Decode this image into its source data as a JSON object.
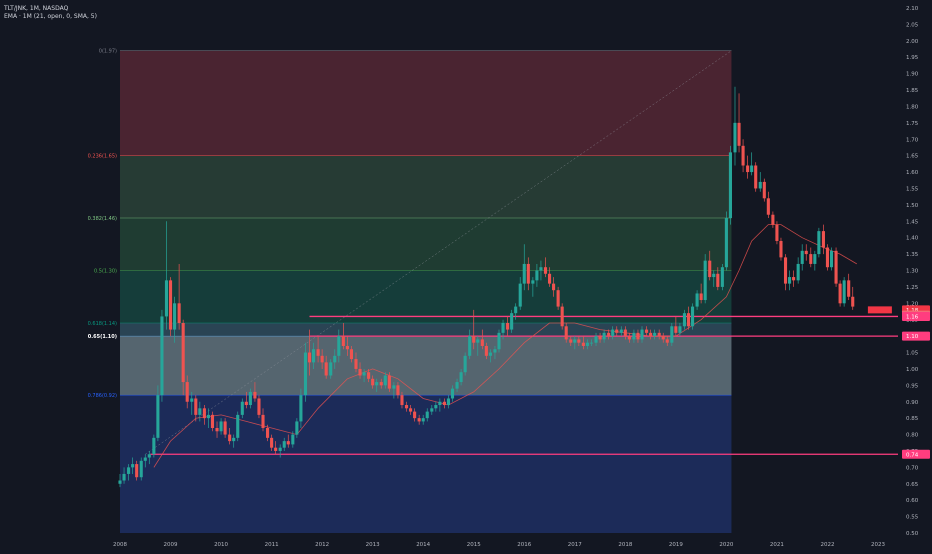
{
  "header": {
    "symbol_line": "TLT/JNK, 1M, NASDAQ",
    "indicator_line": "EMA · 1M (21, open, 0, SMA, 5)"
  },
  "colors": {
    "background": "#131722",
    "up": "#26a69a",
    "down": "#ef5350",
    "ema": "#ef5350",
    "hline": "#ff3d7f",
    "zone_0_0236": "#4a2431",
    "zone_0236_0382": "#263b34",
    "zone_0382_05": "#1f3c32",
    "zone_05_0618": "#153d3a",
    "zone_0618_065": "#2a4454",
    "zone_065_0786": "#55656f",
    "zone_0786_1": "#1c2b59"
  },
  "chart_data": {
    "type": "candlestick",
    "title": "TLT/JNK, 1M, NASDAQ",
    "ylim": [
      0.5,
      2.1
    ],
    "xlim": [
      2008.0,
      2023.6
    ],
    "y_ticks": [
      "2.10",
      "2.05",
      "2.00",
      "1.95",
      "1.90",
      "1.85",
      "1.80",
      "1.75",
      "1.70",
      "1.65",
      "1.60",
      "1.55",
      "1.50",
      "1.45",
      "1.40",
      "1.35",
      "1.30",
      "1.25",
      "1.20",
      "1.15",
      "1.10",
      "1.05",
      "1.00",
      "0.95",
      "0.90",
      "0.85",
      "0.80",
      "0.75",
      "0.70",
      "0.65",
      "0.60",
      "0.55",
      "0.50"
    ],
    "x_ticks": [
      "2008",
      "2009",
      "2010",
      "2011",
      "2012",
      "2013",
      "2014",
      "2015",
      "2016",
      "2017",
      "2018",
      "2019",
      "2020",
      "2021",
      "2022",
      "2023"
    ],
    "fib_levels": [
      {
        "label": "0(1.97)",
        "value": 1.97
      },
      {
        "label": "0.236(1.65)",
        "value": 1.65
      },
      {
        "label": "0.382(1.46)",
        "value": 1.46
      },
      {
        "label": "0.5(1.30)",
        "value": 1.3
      },
      {
        "label": "0.618(1.14)",
        "value": 1.14
      },
      {
        "label": "0.65(1.10)",
        "value": 1.1
      },
      {
        "label": "0.786(0.92)",
        "value": 0.92
      }
    ],
    "fib_bottom": 0.5,
    "fib_x_range": [
      2008.0,
      2020.1
    ],
    "horizontal_lines": [
      {
        "label": "1.16",
        "value": 1.16
      },
      {
        "label": "1.10",
        "value": 1.1
      },
      {
        "label": "0.74",
        "value": 0.74
      }
    ],
    "price_labels": [
      {
        "label": "1.18",
        "value": 1.18
      },
      {
        "label": "1.17",
        "value": 1.17
      }
    ],
    "candles": [
      [
        2008.0,
        0.65,
        0.68,
        0.64,
        0.66
      ],
      [
        2008.08,
        0.66,
        0.7,
        0.65,
        0.68
      ],
      [
        2008.17,
        0.68,
        0.71,
        0.66,
        0.7
      ],
      [
        2008.25,
        0.7,
        0.73,
        0.68,
        0.71
      ],
      [
        2008.33,
        0.71,
        0.72,
        0.66,
        0.67
      ],
      [
        2008.42,
        0.67,
        0.73,
        0.66,
        0.72
      ],
      [
        2008.5,
        0.72,
        0.74,
        0.7,
        0.73
      ],
      [
        2008.58,
        0.73,
        0.75,
        0.71,
        0.74
      ],
      [
        2008.67,
        0.74,
        0.8,
        0.73,
        0.79
      ],
      [
        2008.75,
        0.79,
        0.95,
        0.78,
        0.92
      ],
      [
        2008.83,
        0.92,
        1.18,
        0.9,
        1.16
      ],
      [
        2008.92,
        1.16,
        1.45,
        1.12,
        1.27
      ],
      [
        2009.0,
        1.27,
        1.28,
        1.1,
        1.12
      ],
      [
        2009.08,
        1.12,
        1.22,
        1.08,
        1.2
      ],
      [
        2009.17,
        1.2,
        1.32,
        1.12,
        1.14
      ],
      [
        2009.25,
        1.14,
        1.15,
        0.92,
        0.96
      ],
      [
        2009.33,
        0.96,
        0.98,
        0.88,
        0.9
      ],
      [
        2009.42,
        0.9,
        0.93,
        0.86,
        0.91
      ],
      [
        2009.5,
        0.91,
        0.92,
        0.84,
        0.86
      ],
      [
        2009.58,
        0.86,
        0.9,
        0.84,
        0.88
      ],
      [
        2009.67,
        0.88,
        0.89,
        0.83,
        0.85
      ],
      [
        2009.75,
        0.85,
        0.88,
        0.82,
        0.86
      ],
      [
        2009.83,
        0.86,
        0.87,
        0.81,
        0.82
      ],
      [
        2009.92,
        0.82,
        0.84,
        0.79,
        0.81
      ],
      [
        2010.0,
        0.81,
        0.85,
        0.8,
        0.84
      ],
      [
        2010.08,
        0.84,
        0.85,
        0.79,
        0.8
      ],
      [
        2010.17,
        0.8,
        0.82,
        0.77,
        0.78
      ],
      [
        2010.25,
        0.78,
        0.8,
        0.76,
        0.79
      ],
      [
        2010.33,
        0.79,
        0.87,
        0.78,
        0.86
      ],
      [
        2010.42,
        0.86,
        0.91,
        0.85,
        0.9
      ],
      [
        2010.5,
        0.9,
        0.93,
        0.88,
        0.89
      ],
      [
        2010.58,
        0.89,
        0.94,
        0.88,
        0.93
      ],
      [
        2010.67,
        0.93,
        0.96,
        0.9,
        0.91
      ],
      [
        2010.75,
        0.91,
        0.92,
        0.85,
        0.86
      ],
      [
        2010.83,
        0.86,
        0.88,
        0.81,
        0.82
      ],
      [
        2010.92,
        0.82,
        0.83,
        0.78,
        0.79
      ],
      [
        2011.0,
        0.79,
        0.8,
        0.75,
        0.76
      ],
      [
        2011.08,
        0.76,
        0.78,
        0.74,
        0.75
      ],
      [
        2011.17,
        0.75,
        0.77,
        0.73,
        0.76
      ],
      [
        2011.25,
        0.76,
        0.79,
        0.75,
        0.78
      ],
      [
        2011.33,
        0.78,
        0.8,
        0.76,
        0.77
      ],
      [
        2011.42,
        0.77,
        0.81,
        0.76,
        0.8
      ],
      [
        2011.5,
        0.8,
        0.85,
        0.79,
        0.84
      ],
      [
        2011.58,
        0.84,
        0.94,
        0.82,
        0.92
      ],
      [
        2011.67,
        0.92,
        1.08,
        0.9,
        1.05
      ],
      [
        2011.75,
        1.05,
        1.12,
        0.98,
        1.02
      ],
      [
        2011.83,
        1.02,
        1.08,
        1.0,
        1.06
      ],
      [
        2011.92,
        1.06,
        1.1,
        1.02,
        1.04
      ],
      [
        2012.0,
        1.04,
        1.06,
        1.0,
        1.02
      ],
      [
        2012.08,
        1.02,
        1.04,
        0.97,
        0.98
      ],
      [
        2012.17,
        0.98,
        1.03,
        0.97,
        1.02
      ],
      [
        2012.25,
        1.02,
        1.06,
        1.0,
        1.04
      ],
      [
        2012.33,
        1.04,
        1.12,
        1.02,
        1.1
      ],
      [
        2012.42,
        1.1,
        1.14,
        1.06,
        1.07
      ],
      [
        2012.5,
        1.07,
        1.1,
        1.04,
        1.06
      ],
      [
        2012.58,
        1.06,
        1.07,
        1.02,
        1.03
      ],
      [
        2012.67,
        1.03,
        1.05,
        0.99,
        1.0
      ],
      [
        2012.75,
        1.0,
        1.02,
        0.97,
        0.98
      ],
      [
        2012.83,
        0.98,
        1.0,
        0.96,
        0.99
      ],
      [
        2012.92,
        0.99,
        1.0,
        0.96,
        0.97
      ],
      [
        2013.0,
        0.97,
        0.98,
        0.94,
        0.95
      ],
      [
        2013.08,
        0.95,
        0.97,
        0.93,
        0.96
      ],
      [
        2013.17,
        0.96,
        0.97,
        0.94,
        0.95
      ],
      [
        2013.25,
        0.95,
        0.99,
        0.94,
        0.98
      ],
      [
        2013.33,
        0.98,
        0.99,
        0.93,
        0.94
      ],
      [
        2013.42,
        0.94,
        0.96,
        0.91,
        0.95
      ],
      [
        2013.5,
        0.95,
        0.96,
        0.91,
        0.92
      ],
      [
        2013.58,
        0.92,
        0.93,
        0.88,
        0.89
      ],
      [
        2013.67,
        0.89,
        0.9,
        0.87,
        0.88
      ],
      [
        2013.75,
        0.88,
        0.89,
        0.86,
        0.87
      ],
      [
        2013.83,
        0.87,
        0.88,
        0.84,
        0.85
      ],
      [
        2013.92,
        0.85,
        0.86,
        0.83,
        0.84
      ],
      [
        2014.0,
        0.84,
        0.86,
        0.83,
        0.85
      ],
      [
        2014.08,
        0.85,
        0.88,
        0.84,
        0.87
      ],
      [
        2014.17,
        0.87,
        0.89,
        0.86,
        0.88
      ],
      [
        2014.25,
        0.88,
        0.9,
        0.87,
        0.89
      ],
      [
        2014.33,
        0.89,
        0.91,
        0.87,
        0.9
      ],
      [
        2014.42,
        0.9,
        0.91,
        0.88,
        0.89
      ],
      [
        2014.5,
        0.89,
        0.92,
        0.88,
        0.91
      ],
      [
        2014.58,
        0.91,
        0.95,
        0.9,
        0.94
      ],
      [
        2014.67,
        0.94,
        0.97,
        0.93,
        0.96
      ],
      [
        2014.75,
        0.96,
        1.0,
        0.95,
        0.99
      ],
      [
        2014.83,
        0.99,
        1.05,
        0.98,
        1.04
      ],
      [
        2014.92,
        1.04,
        1.12,
        1.03,
        1.1
      ],
      [
        2015.0,
        1.1,
        1.18,
        1.06,
        1.08
      ],
      [
        2015.08,
        1.08,
        1.1,
        1.04,
        1.09
      ],
      [
        2015.17,
        1.09,
        1.12,
        1.06,
        1.07
      ],
      [
        2015.25,
        1.07,
        1.08,
        1.03,
        1.04
      ],
      [
        2015.33,
        1.04,
        1.06,
        1.02,
        1.05
      ],
      [
        2015.42,
        1.05,
        1.07,
        1.03,
        1.06
      ],
      [
        2015.5,
        1.06,
        1.12,
        1.05,
        1.11
      ],
      [
        2015.58,
        1.11,
        1.15,
        1.09,
        1.14
      ],
      [
        2015.67,
        1.14,
        1.16,
        1.1,
        1.12
      ],
      [
        2015.75,
        1.12,
        1.18,
        1.11,
        1.17
      ],
      [
        2015.83,
        1.17,
        1.2,
        1.15,
        1.19
      ],
      [
        2015.92,
        1.19,
        1.28,
        1.18,
        1.26
      ],
      [
        2016.0,
        1.26,
        1.38,
        1.24,
        1.32
      ],
      [
        2016.08,
        1.32,
        1.34,
        1.24,
        1.26
      ],
      [
        2016.17,
        1.26,
        1.28,
        1.22,
        1.27
      ],
      [
        2016.25,
        1.27,
        1.32,
        1.25,
        1.3
      ],
      [
        2016.33,
        1.3,
        1.33,
        1.27,
        1.31
      ],
      [
        2016.42,
        1.31,
        1.34,
        1.28,
        1.29
      ],
      [
        2016.5,
        1.29,
        1.31,
        1.25,
        1.26
      ],
      [
        2016.58,
        1.26,
        1.28,
        1.22,
        1.24
      ],
      [
        2016.67,
        1.24,
        1.25,
        1.18,
        1.19
      ],
      [
        2016.75,
        1.19,
        1.2,
        1.12,
        1.13
      ],
      [
        2016.83,
        1.13,
        1.14,
        1.08,
        1.09
      ],
      [
        2016.92,
        1.09,
        1.1,
        1.07,
        1.08
      ],
      [
        2017.0,
        1.08,
        1.1,
        1.06,
        1.09
      ],
      [
        2017.08,
        1.09,
        1.1,
        1.07,
        1.08
      ],
      [
        2017.17,
        1.08,
        1.1,
        1.06,
        1.07
      ],
      [
        2017.25,
        1.07,
        1.09,
        1.06,
        1.08
      ],
      [
        2017.33,
        1.08,
        1.09,
        1.07,
        1.08
      ],
      [
        2017.42,
        1.08,
        1.11,
        1.07,
        1.1
      ],
      [
        2017.5,
        1.1,
        1.11,
        1.08,
        1.09
      ],
      [
        2017.58,
        1.09,
        1.12,
        1.08,
        1.11
      ],
      [
        2017.67,
        1.11,
        1.12,
        1.09,
        1.1
      ],
      [
        2017.75,
        1.1,
        1.13,
        1.09,
        1.12
      ],
      [
        2017.83,
        1.12,
        1.13,
        1.1,
        1.11
      ],
      [
        2017.92,
        1.11,
        1.13,
        1.1,
        1.12
      ],
      [
        2018.0,
        1.12,
        1.13,
        1.09,
        1.1
      ],
      [
        2018.08,
        1.1,
        1.11,
        1.08,
        1.09
      ],
      [
        2018.17,
        1.09,
        1.12,
        1.08,
        1.11
      ],
      [
        2018.25,
        1.11,
        1.12,
        1.08,
        1.09
      ],
      [
        2018.33,
        1.09,
        1.13,
        1.08,
        1.12
      ],
      [
        2018.42,
        1.12,
        1.13,
        1.1,
        1.11
      ],
      [
        2018.5,
        1.11,
        1.12,
        1.09,
        1.1
      ],
      [
        2018.58,
        1.1,
        1.12,
        1.09,
        1.11
      ],
      [
        2018.67,
        1.11,
        1.12,
        1.09,
        1.1
      ],
      [
        2018.75,
        1.1,
        1.11,
        1.08,
        1.09
      ],
      [
        2018.83,
        1.09,
        1.1,
        1.07,
        1.08
      ],
      [
        2018.92,
        1.08,
        1.14,
        1.07,
        1.13
      ],
      [
        2019.0,
        1.13,
        1.16,
        1.1,
        1.11
      ],
      [
        2019.08,
        1.11,
        1.14,
        1.1,
        1.13
      ],
      [
        2019.17,
        1.13,
        1.18,
        1.12,
        1.17
      ],
      [
        2019.25,
        1.17,
        1.19,
        1.12,
        1.13
      ],
      [
        2019.33,
        1.13,
        1.2,
        1.12,
        1.19
      ],
      [
        2019.42,
        1.19,
        1.24,
        1.18,
        1.23
      ],
      [
        2019.5,
        1.23,
        1.26,
        1.2,
        1.21
      ],
      [
        2019.58,
        1.21,
        1.35,
        1.2,
        1.33
      ],
      [
        2019.67,
        1.33,
        1.36,
        1.27,
        1.28
      ],
      [
        2019.75,
        1.28,
        1.3,
        1.25,
        1.29
      ],
      [
        2019.83,
        1.29,
        1.31,
        1.24,
        1.25
      ],
      [
        2019.92,
        1.25,
        1.32,
        1.24,
        1.31
      ],
      [
        2020.0,
        1.31,
        1.48,
        1.3,
        1.46
      ],
      [
        2020.08,
        1.46,
        1.68,
        1.44,
        1.66
      ],
      [
        2020.17,
        1.66,
        1.86,
        1.62,
        1.75
      ],
      [
        2020.25,
        1.75,
        1.84,
        1.66,
        1.68
      ],
      [
        2020.33,
        1.68,
        1.7,
        1.6,
        1.62
      ],
      [
        2020.42,
        1.62,
        1.65,
        1.58,
        1.6
      ],
      [
        2020.5,
        1.6,
        1.66,
        1.59,
        1.62
      ],
      [
        2020.58,
        1.62,
        1.63,
        1.54,
        1.55
      ],
      [
        2020.67,
        1.55,
        1.6,
        1.54,
        1.57
      ],
      [
        2020.75,
        1.57,
        1.58,
        1.51,
        1.52
      ],
      [
        2020.83,
        1.52,
        1.54,
        1.46,
        1.47
      ],
      [
        2020.92,
        1.47,
        1.48,
        1.43,
        1.44
      ],
      [
        2021.0,
        1.44,
        1.45,
        1.38,
        1.39
      ],
      [
        2021.08,
        1.39,
        1.4,
        1.33,
        1.34
      ],
      [
        2021.17,
        1.34,
        1.35,
        1.24,
        1.26
      ],
      [
        2021.25,
        1.26,
        1.3,
        1.24,
        1.28
      ],
      [
        2021.33,
        1.28,
        1.3,
        1.25,
        1.27
      ],
      [
        2021.42,
        1.27,
        1.34,
        1.26,
        1.32
      ],
      [
        2021.5,
        1.32,
        1.38,
        1.3,
        1.36
      ],
      [
        2021.58,
        1.36,
        1.38,
        1.33,
        1.35
      ],
      [
        2021.67,
        1.35,
        1.37,
        1.31,
        1.32
      ],
      [
        2021.75,
        1.32,
        1.36,
        1.3,
        1.35
      ],
      [
        2021.83,
        1.35,
        1.43,
        1.34,
        1.42
      ],
      [
        2021.92,
        1.42,
        1.44,
        1.35,
        1.37
      ],
      [
        2022.0,
        1.37,
        1.38,
        1.3,
        1.31
      ],
      [
        2022.08,
        1.31,
        1.37,
        1.3,
        1.36
      ],
      [
        2022.17,
        1.36,
        1.37,
        1.25,
        1.26
      ],
      [
        2022.25,
        1.26,
        1.27,
        1.19,
        1.2
      ],
      [
        2022.33,
        1.2,
        1.28,
        1.19,
        1.27
      ],
      [
        2022.42,
        1.27,
        1.29,
        1.21,
        1.22
      ],
      [
        2022.5,
        1.22,
        1.25,
        1.18,
        1.19
      ]
    ],
    "ema": [
      [
        2008.67,
        0.7
      ],
      [
        2009.0,
        0.78
      ],
      [
        2009.5,
        0.85
      ],
      [
        2010.0,
        0.86
      ],
      [
        2010.5,
        0.84
      ],
      [
        2011.0,
        0.82
      ],
      [
        2011.5,
        0.8
      ],
      [
        2011.92,
        0.88
      ],
      [
        2012.5,
        0.97
      ],
      [
        2013.0,
        1.0
      ],
      [
        2013.5,
        0.97
      ],
      [
        2014.0,
        0.91
      ],
      [
        2014.5,
        0.89
      ],
      [
        2015.0,
        0.93
      ],
      [
        2015.5,
        1.0
      ],
      [
        2016.0,
        1.08
      ],
      [
        2016.5,
        1.14
      ],
      [
        2017.0,
        1.14
      ],
      [
        2017.5,
        1.12
      ],
      [
        2018.0,
        1.11
      ],
      [
        2018.5,
        1.1
      ],
      [
        2019.0,
        1.1
      ],
      [
        2019.5,
        1.15
      ],
      [
        2020.0,
        1.22
      ],
      [
        2020.25,
        1.3
      ],
      [
        2020.5,
        1.39
      ],
      [
        2020.83,
        1.44
      ],
      [
        2021.08,
        1.44
      ],
      [
        2021.5,
        1.4
      ],
      [
        2021.92,
        1.37
      ],
      [
        2022.25,
        1.35
      ],
      [
        2022.58,
        1.32
      ]
    ]
  }
}
